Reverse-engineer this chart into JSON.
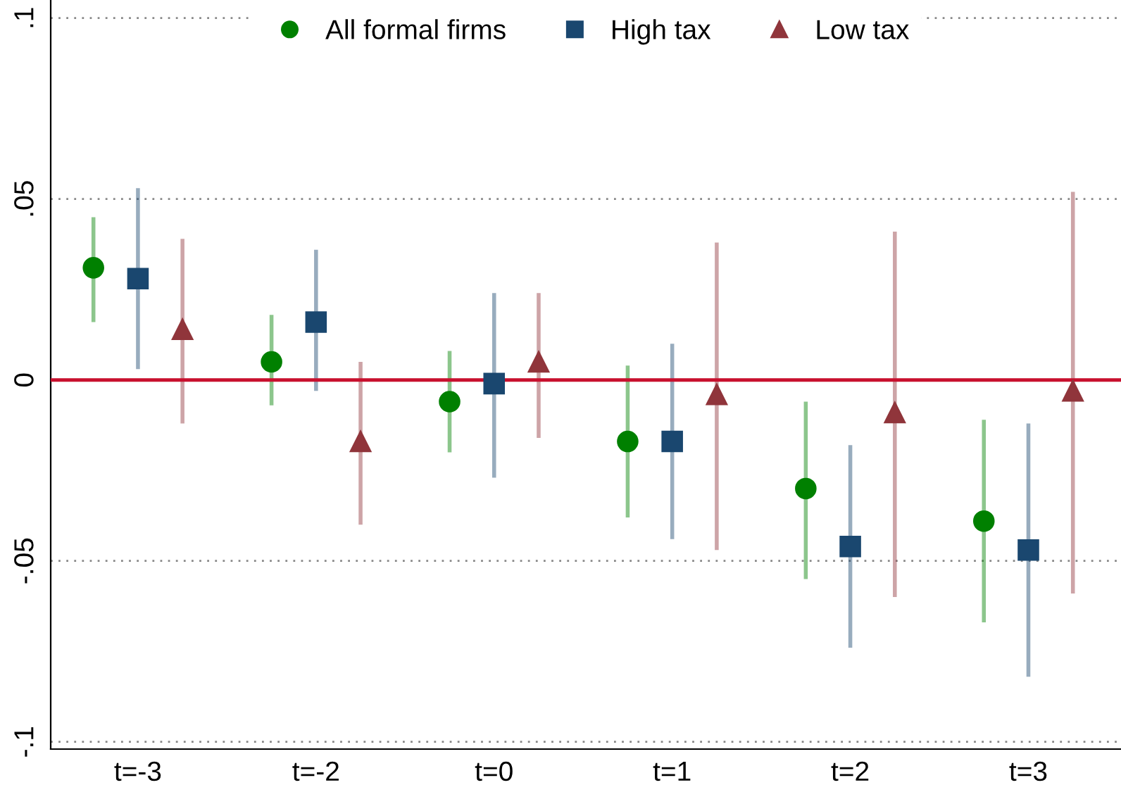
{
  "chart_data": {
    "type": "scatter",
    "categories": [
      "t=-3",
      "t=-2",
      "t=0",
      "t=1",
      "t=2",
      "t=3"
    ],
    "series": [
      {
        "name": "All formal firms",
        "color": "#008000",
        "marker": "circle",
        "values": [
          0.031,
          0.005,
          -0.006,
          -0.017,
          -0.03,
          -0.039
        ],
        "errors": [
          [
            0.016,
            0.045
          ],
          [
            -0.007,
            0.018
          ],
          [
            -0.02,
            0.008
          ],
          [
            -0.038,
            0.004
          ],
          [
            -0.055,
            -0.006
          ],
          [
            -0.067,
            -0.011
          ]
        ]
      },
      {
        "name": "High tax",
        "color": "#1a476f",
        "marker": "square",
        "values": [
          0.028,
          0.016,
          -0.001,
          -0.017,
          -0.046,
          -0.047
        ],
        "errors": [
          [
            0.003,
            0.053
          ],
          [
            -0.003,
            0.036
          ],
          [
            -0.027,
            0.024
          ],
          [
            -0.044,
            0.01
          ],
          [
            -0.074,
            -0.018
          ],
          [
            -0.082,
            -0.012
          ]
        ]
      },
      {
        "name": "Low tax",
        "color": "#90353b",
        "marker": "triangle",
        "values": [
          0.014,
          -0.017,
          0.005,
          -0.004,
          -0.009,
          -0.003
        ],
        "errors": [
          [
            -0.012,
            0.039
          ],
          [
            -0.04,
            0.005
          ],
          [
            -0.016,
            0.024
          ],
          [
            -0.047,
            0.038
          ],
          [
            -0.06,
            0.041
          ],
          [
            -0.059,
            0.052
          ]
        ]
      }
    ],
    "ylim": [
      -0.102,
      0.105
    ],
    "yticks": [
      {
        "value": -0.1,
        "label": "-.1"
      },
      {
        "value": -0.05,
        "label": "-.05"
      },
      {
        "value": 0,
        "label": "0"
      },
      {
        "value": 0.05,
        "label": ".05"
      },
      {
        "value": 0.1,
        "label": ".1"
      }
    ],
    "ref_lines": [
      {
        "axis": "y",
        "value": 0,
        "color": "#c8102e"
      }
    ],
    "grid": "y",
    "legend": "top"
  }
}
